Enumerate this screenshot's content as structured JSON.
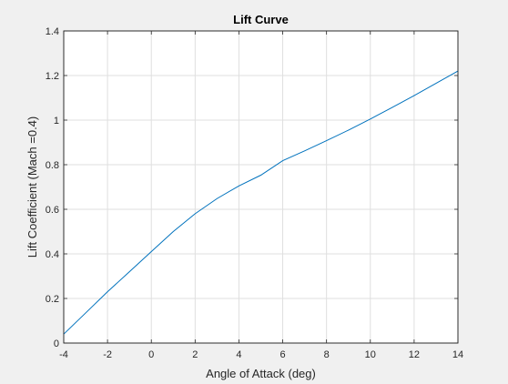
{
  "chart_data": {
    "type": "line",
    "title": "Lift Curve",
    "xlabel": "Angle of Attack (deg)",
    "ylabel": "Lift Coefficient (Mach =0.4)",
    "xlim": [
      -4,
      14
    ],
    "ylim": [
      0,
      1.4
    ],
    "xticks": [
      -4,
      -2,
      0,
      2,
      4,
      6,
      8,
      10,
      12,
      14
    ],
    "yticks": [
      0,
      0.2,
      0.4,
      0.6,
      0.8,
      1,
      1.2,
      1.4
    ],
    "grid": true,
    "series": [
      {
        "color": "#0072bd",
        "x": [
          -4,
          -3,
          -2,
          -1,
          0,
          1,
          2,
          3,
          4,
          5,
          6,
          7,
          8,
          9,
          10,
          11,
          12,
          13,
          14
        ],
        "y": [
          0.04,
          0.135,
          0.23,
          0.32,
          0.41,
          0.5,
          0.58,
          0.648,
          0.705,
          0.753,
          0.818,
          0.862,
          0.908,
          0.955,
          1.005,
          1.057,
          1.11,
          1.165,
          1.22
        ]
      }
    ]
  }
}
